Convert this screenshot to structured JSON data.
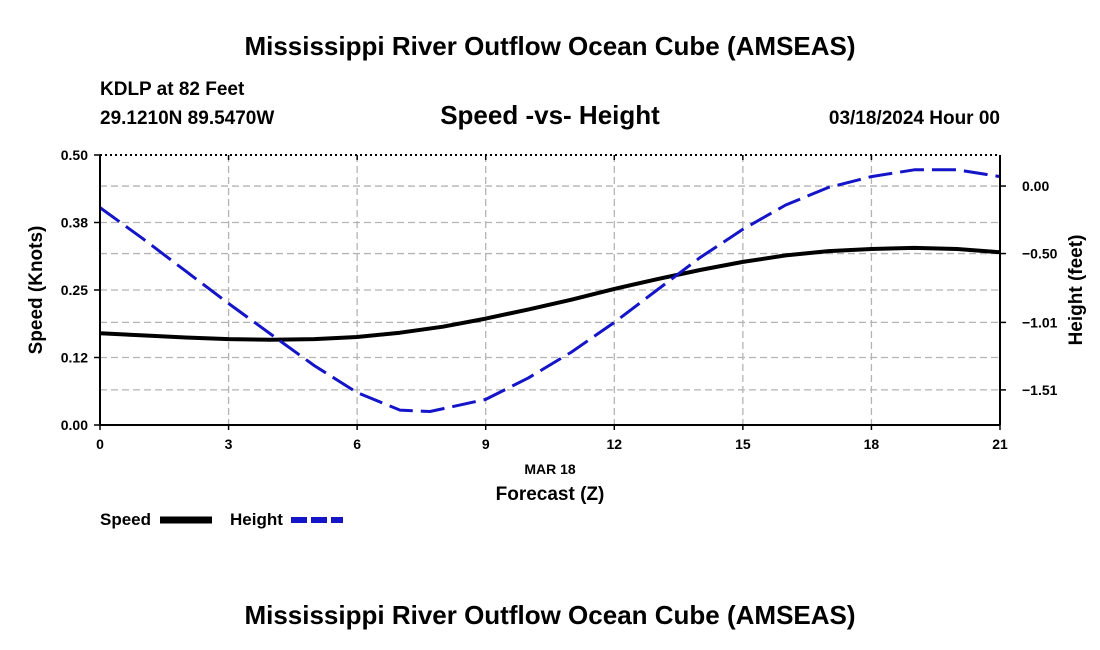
{
  "page": {
    "top_title": "Mississippi River Outflow Ocean Cube (AMSEAS)",
    "bottom_title": "Mississippi River Outflow Ocean Cube (AMSEAS)",
    "station": "KDLP at 82 Feet",
    "coords": "29.1210N  89.5470W",
    "datetime": "03/18/2024 Hour 00"
  },
  "chart_data": {
    "type": "line",
    "title": "Speed -vs- Height",
    "xlabel": "Forecast (Z)",
    "xdate": "MAR 18",
    "ylabel": "Speed (Knots)",
    "y2label": "Height (feet)",
    "xlim": [
      0,
      21
    ],
    "ylim": [
      0,
      0.5
    ],
    "y2lim": [
      -1.77,
      0.23
    ],
    "xticks": [
      "0",
      "3",
      "6",
      "9",
      "12",
      "15",
      "18",
      "21"
    ],
    "xtick_values": [
      0,
      3,
      6,
      9,
      12,
      15,
      18,
      21
    ],
    "yticks": [
      "0.00",
      "0.12",
      "0.25",
      "0.38",
      "0.50"
    ],
    "ytick_values": [
      0,
      0.125,
      0.25,
      0.375,
      0.5
    ],
    "y2ticks": [
      "0.00",
      "−0.50",
      "−1.01",
      "−1.51"
    ],
    "y2tick_values": [
      0,
      -0.5,
      -1.01,
      -1.51
    ],
    "grid": true,
    "series": [
      {
        "name": "Speed",
        "axis": "left",
        "color": "#000000",
        "dash": "solid",
        "x": [
          0,
          1,
          2,
          3,
          4,
          5,
          6,
          7,
          8,
          9,
          10,
          11,
          12,
          13,
          14,
          15,
          16,
          17,
          18,
          19,
          20,
          21
        ],
        "values": [
          0.17,
          0.166,
          0.162,
          0.159,
          0.158,
          0.159,
          0.163,
          0.171,
          0.182,
          0.197,
          0.214,
          0.232,
          0.252,
          0.27,
          0.287,
          0.302,
          0.314,
          0.322,
          0.326,
          0.328,
          0.326,
          0.32
        ]
      },
      {
        "name": "Height",
        "axis": "right",
        "color": "#1414c8",
        "dash": "dashed",
        "x": [
          0,
          1,
          2,
          3,
          4,
          5,
          6,
          7,
          7.7,
          9,
          10,
          11,
          12,
          13,
          14,
          15,
          16,
          17,
          18,
          19,
          20,
          21
        ],
        "values": [
          -0.16,
          -0.39,
          -0.63,
          -0.87,
          -1.1,
          -1.33,
          -1.53,
          -1.66,
          -1.67,
          -1.58,
          -1.42,
          -1.23,
          -1.01,
          -0.77,
          -0.53,
          -0.32,
          -0.14,
          -0.01,
          0.07,
          0.12,
          0.12,
          0.07
        ]
      }
    ],
    "legend": [
      {
        "label": "Speed",
        "color": "#000000",
        "dash": "solid"
      },
      {
        "label": "Height",
        "color": "#1414c8",
        "dash": "dashed"
      }
    ]
  }
}
